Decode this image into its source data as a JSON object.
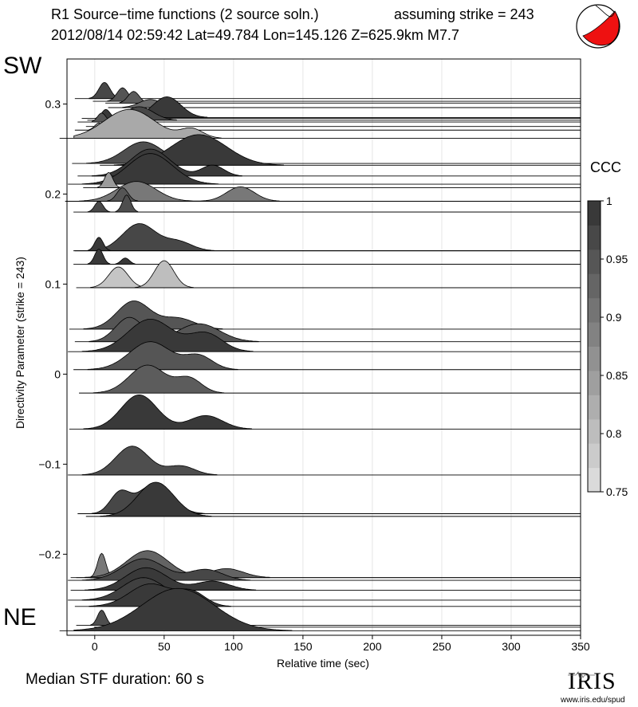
{
  "header": {
    "title_line1": "R1 Source−time functions (2 source soln.)",
    "title_line2": "2012/08/14 02:59:42  Lat=49.784 Lon=145.126  Z=625.9km  M7.7",
    "strike_note": "assuming strike = 243"
  },
  "labels": {
    "sw": "SW",
    "ne": "NE",
    "median": "Median STF duration: 60 s",
    "ccc_title": "CCC"
  },
  "branding": {
    "logo_text": "IRIS",
    "url": "www.iris.edu/spud"
  },
  "colors": {
    "dark_fill": "#333333",
    "mid_fill": "#5f5f5f",
    "light_fill": "#a8a8a8",
    "beachball_red": "#ee1111",
    "gridline": "#e6e6e6"
  },
  "chart_data": {
    "type": "area",
    "title": "R1 Source−time functions (2 source soln.)",
    "xlabel": "Relative time (sec)",
    "ylabel": "Directivity Parameter (strike = 243)",
    "xlim": [
      -20,
      350
    ],
    "ylim": [
      -0.29,
      0.35
    ],
    "xticks": [
      0,
      50,
      100,
      150,
      200,
      250,
      300,
      350
    ],
    "yticks": [
      -0.2,
      -0.1,
      0,
      0.1,
      0.2,
      0.3
    ],
    "ytick_labels": [
      "−0.2",
      "−0.1",
      "0",
      "0.1",
      "0.2",
      "0.3"
    ],
    "grid": "vertical",
    "colorbar": {
      "label": "CCC",
      "range": [
        0.75,
        1
      ],
      "ticks": [
        0.75,
        0.8,
        0.85,
        0.9,
        0.95,
        1
      ],
      "tick_labels": [
        "0.75",
        "0.8",
        "0.85",
        "0.9",
        "0.95",
        "1"
      ]
    },
    "stf_traces": [
      {
        "y": 0.306,
        "ccc": 0.97,
        "peaks": [
          {
            "t": 7,
            "a": 0.018,
            "w": 4
          }
        ]
      },
      {
        "y": 0.303,
        "ccc": 0.95,
        "peaks": [
          {
            "t": 20,
            "a": 0.015,
            "w": 4
          }
        ]
      },
      {
        "y": 0.301,
        "ccc": 0.94,
        "peaks": [
          {
            "t": 28,
            "a": 0.013,
            "w": 4
          }
        ]
      },
      {
        "y": 0.296,
        "ccc": 0.92,
        "peaks": [
          {
            "t": 40,
            "a": 0.009,
            "w": 8
          }
        ]
      },
      {
        "y": 0.285,
        "ccc": 0.99,
        "peaks": [
          {
            "t": 52,
            "a": 0.023,
            "w": 10
          }
        ]
      },
      {
        "y": 0.284,
        "ccc": 0.99,
        "peaks": [
          {
            "t": 8,
            "a": 0.01,
            "w": 3
          }
        ]
      },
      {
        "y": 0.282,
        "ccc": 0.97,
        "peaks": [
          {
            "t": 32,
            "a": 0.015,
            "w": 10
          }
        ]
      },
      {
        "y": 0.28,
        "ccc": 0.95,
        "peaks": [
          {
            "t": 5,
            "a": 0.01,
            "w": 3
          }
        ]
      },
      {
        "y": 0.275,
        "ccc": 0.93,
        "peaks": [
          {
            "t": 25,
            "a": 0.011,
            "w": 8
          }
        ]
      },
      {
        "y": 0.271,
        "ccc": 0.87,
        "peaks": [
          {
            "t": 3,
            "a": 0.008,
            "w": 3
          }
        ]
      },
      {
        "y": 0.262,
        "ccc": 0.83,
        "peaks": [
          {
            "t": 25,
            "a": 0.032,
            "w": 18
          },
          {
            "t": 70,
            "a": 0.01,
            "w": 8
          }
        ]
      },
      {
        "y": 0.234,
        "ccc": 0.96,
        "peaks": [
          {
            "t": 35,
            "a": 0.024,
            "w": 14
          }
        ]
      },
      {
        "y": 0.232,
        "ccc": 0.99,
        "peaks": [
          {
            "t": 75,
            "a": 0.034,
            "w": 20
          }
        ]
      },
      {
        "y": 0.22,
        "ccc": 0.99,
        "peaks": [
          {
            "t": 40,
            "a": 0.03,
            "w": 14
          },
          {
            "t": 85,
            "a": 0.012,
            "w": 8
          }
        ]
      },
      {
        "y": 0.211,
        "ccc": 0.99,
        "peaks": [
          {
            "t": 40,
            "a": 0.034,
            "w": 16
          }
        ]
      },
      {
        "y": 0.207,
        "ccc": 0.85,
        "peaks": [
          {
            "t": 10,
            "a": 0.017,
            "w": 3
          }
        ]
      },
      {
        "y": 0.192,
        "ccc": 0.9,
        "peaks": [
          {
            "t": 30,
            "a": 0.022,
            "w": 14
          },
          {
            "t": 105,
            "a": 0.016,
            "w": 10
          }
        ]
      },
      {
        "y": 0.192,
        "ccc": 0.95,
        "peaks": [
          {
            "t": 20,
            "a": 0.015,
            "w": 4
          }
        ]
      },
      {
        "y": 0.18,
        "ccc": 0.97,
        "peaks": [
          {
            "t": 3,
            "a": 0.012,
            "w": 3
          }
        ]
      },
      {
        "y": 0.18,
        "ccc": 0.96,
        "peaks": [
          {
            "t": 23,
            "a": 0.019,
            "w": 3
          }
        ]
      },
      {
        "y": 0.137,
        "ccc": 0.97,
        "peaks": [
          {
            "t": 32,
            "a": 0.03,
            "w": 12
          },
          {
            "t": 60,
            "a": 0.01,
            "w": 10
          }
        ]
      },
      {
        "y": 0.137,
        "ccc": 0.99,
        "peaks": [
          {
            "t": 3,
            "a": 0.015,
            "w": 3
          }
        ]
      },
      {
        "y": 0.122,
        "ccc": 0.99,
        "peaks": [
          {
            "t": 3,
            "a": 0.017,
            "w": 3
          }
        ]
      },
      {
        "y": 0.122,
        "ccc": 0.99,
        "peaks": [
          {
            "t": 22,
            "a": 0.007,
            "w": 3
          }
        ]
      },
      {
        "y": 0.096,
        "ccc": 0.79,
        "peaks": [
          {
            "t": 17,
            "a": 0.023,
            "w": 7
          }
        ]
      },
      {
        "y": 0.096,
        "ccc": 0.8,
        "peaks": [
          {
            "t": 50,
            "a": 0.03,
            "w": 7
          }
        ]
      },
      {
        "y": 0.05,
        "ccc": 0.95,
        "peaks": [
          {
            "t": 28,
            "a": 0.031,
            "w": 12
          },
          {
            "t": 60,
            "a": 0.012,
            "w": 12
          }
        ]
      },
      {
        "y": 0.036,
        "ccc": 0.95,
        "peaks": [
          {
            "t": 25,
            "a": 0.027,
            "w": 10
          },
          {
            "t": 75,
            "a": 0.02,
            "w": 15
          }
        ]
      },
      {
        "y": 0.025,
        "ccc": 0.99,
        "peaks": [
          {
            "t": 40,
            "a": 0.036,
            "w": 16
          },
          {
            "t": 80,
            "a": 0.02,
            "w": 12
          }
        ]
      },
      {
        "y": 0.005,
        "ccc": 0.95,
        "peaks": [
          {
            "t": 40,
            "a": 0.031,
            "w": 15
          },
          {
            "t": 75,
            "a": 0.015,
            "w": 10
          }
        ]
      },
      {
        "y": -0.021,
        "ccc": 0.94,
        "peaks": [
          {
            "t": 38,
            "a": 0.031,
            "w": 13
          },
          {
            "t": 68,
            "a": 0.016,
            "w": 9
          }
        ]
      },
      {
        "y": -0.061,
        "ccc": 0.99,
        "peaks": [
          {
            "t": 32,
            "a": 0.038,
            "w": 13
          },
          {
            "t": 80,
            "a": 0.015,
            "w": 12
          }
        ]
      },
      {
        "y": -0.112,
        "ccc": 0.96,
        "peaks": [
          {
            "t": 27,
            "a": 0.032,
            "w": 12
          },
          {
            "t": 62,
            "a": 0.01,
            "w": 10
          }
        ]
      },
      {
        "y": -0.155,
        "ccc": 0.97,
        "peaks": [
          {
            "t": 18,
            "a": 0.022,
            "w": 7
          },
          {
            "t": 43,
            "a": 0.033,
            "w": 12
          }
        ]
      },
      {
        "y": -0.158,
        "ccc": 0.99,
        "peaks": [
          {
            "t": 44,
            "a": 0.038,
            "w": 13
          }
        ]
      },
      {
        "y": -0.226,
        "ccc": 0.9,
        "peaks": [
          {
            "t": 5,
            "a": 0.027,
            "w": 3
          }
        ]
      },
      {
        "y": -0.226,
        "ccc": 0.93,
        "peaks": [
          {
            "t": 38,
            "a": 0.03,
            "w": 15
          },
          {
            "t": 95,
            "a": 0.01,
            "w": 12
          }
        ]
      },
      {
        "y": -0.229,
        "ccc": 0.97,
        "peaks": [
          {
            "t": 35,
            "a": 0.024,
            "w": 15
          },
          {
            "t": 80,
            "a": 0.012,
            "w": 12
          }
        ]
      },
      {
        "y": -0.24,
        "ccc": 0.99,
        "peaks": [
          {
            "t": 37,
            "a": 0.025,
            "w": 15
          },
          {
            "t": 85,
            "a": 0.01,
            "w": 12
          }
        ]
      },
      {
        "y": -0.251,
        "ccc": 0.98,
        "peaks": [
          {
            "t": 35,
            "a": 0.025,
            "w": 15
          }
        ]
      },
      {
        "y": -0.258,
        "ccc": 0.99,
        "peaks": [
          {
            "t": 40,
            "a": 0.025,
            "w": 15
          },
          {
            "t": 70,
            "a": 0.015,
            "w": 10
          }
        ]
      },
      {
        "y": -0.279,
        "ccc": 0.96,
        "peaks": [
          {
            "t": 5,
            "a": 0.017,
            "w": 3
          }
        ]
      },
      {
        "y": -0.281,
        "ccc": 0.99,
        "peaks": [
          {
            "t": 45,
            "a": 0.027,
            "w": 12
          }
        ]
      },
      {
        "y": -0.285,
        "ccc": 0.99,
        "peaks": [
          {
            "t": 60,
            "a": 0.047,
            "w": 26
          }
        ]
      }
    ]
  }
}
